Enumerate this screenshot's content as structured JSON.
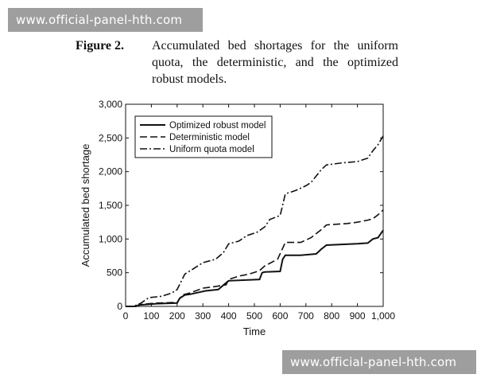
{
  "watermark_top": "www.official-panel-hth.com",
  "watermark_bottom": "www.official-panel-hth.com",
  "caption": {
    "label": "Figure 2.",
    "text": "Accumulated bed shortages for the uniform quota, the deterministic, and the optimized robust models."
  },
  "chart_data": {
    "type": "line",
    "xlabel": "Time",
    "ylabel": "Accumulated bed shortage",
    "xlim": [
      0,
      1000
    ],
    "ylim": [
      0,
      3000
    ],
    "x_ticks": [
      0,
      100,
      200,
      300,
      400,
      500,
      600,
      700,
      800,
      900,
      1000
    ],
    "x_tick_labels": [
      "0",
      "100",
      "200",
      "300",
      "400",
      "500",
      "600",
      "700",
      "800",
      "900",
      "1,000"
    ],
    "y_ticks": [
      0,
      500,
      1000,
      1500,
      2000,
      2500,
      3000
    ],
    "y_tick_labels": [
      "0",
      "500",
      "1,000",
      "1,500",
      "2,000",
      "2,500",
      "3,000"
    ],
    "grid": false,
    "legend_position": "top-left",
    "series": [
      {
        "name": "Optimized robust model",
        "style": "solid",
        "x": [
          0,
          40,
          50,
          120,
          200,
          210,
          230,
          250,
          310,
          360,
          390,
          400,
          520,
          530,
          540,
          600,
          610,
          620,
          680,
          740,
          760,
          780,
          900,
          940,
          960,
          980,
          1000
        ],
        "y": [
          0,
          0,
          20,
          40,
          50,
          120,
          170,
          180,
          230,
          250,
          350,
          380,
          400,
          500,
          510,
          520,
          700,
          760,
          760,
          780,
          850,
          910,
          930,
          940,
          1000,
          1020,
          1130
        ]
      },
      {
        "name": "Deterministic model",
        "style": "dashed",
        "x": [
          0,
          40,
          60,
          120,
          200,
          220,
          250,
          300,
          340,
          390,
          400,
          440,
          480,
          520,
          540,
          590,
          620,
          680,
          720,
          760,
          780,
          860,
          900,
          940,
          960,
          980,
          1000
        ],
        "y": [
          0,
          0,
          30,
          50,
          60,
          170,
          200,
          270,
          290,
          320,
          400,
          450,
          480,
          530,
          600,
          700,
          950,
          950,
          1020,
          1140,
          1210,
          1230,
          1250,
          1280,
          1300,
          1360,
          1430
        ]
      },
      {
        "name": "Uniform quota model",
        "style": "dashdot",
        "x": [
          0,
          30,
          60,
          90,
          140,
          180,
          200,
          230,
          260,
          280,
          300,
          350,
          380,
          400,
          440,
          470,
          510,
          540,
          560,
          600,
          620,
          660,
          700,
          720,
          760,
          780,
          840,
          900,
          940,
          960,
          980,
          1000
        ],
        "y": [
          0,
          0,
          50,
          130,
          150,
          200,
          250,
          480,
          550,
          600,
          650,
          700,
          800,
          930,
          970,
          1050,
          1100,
          1180,
          1290,
          1350,
          1670,
          1720,
          1790,
          1840,
          2030,
          2100,
          2130,
          2150,
          2200,
          2310,
          2400,
          2530
        ]
      }
    ]
  }
}
